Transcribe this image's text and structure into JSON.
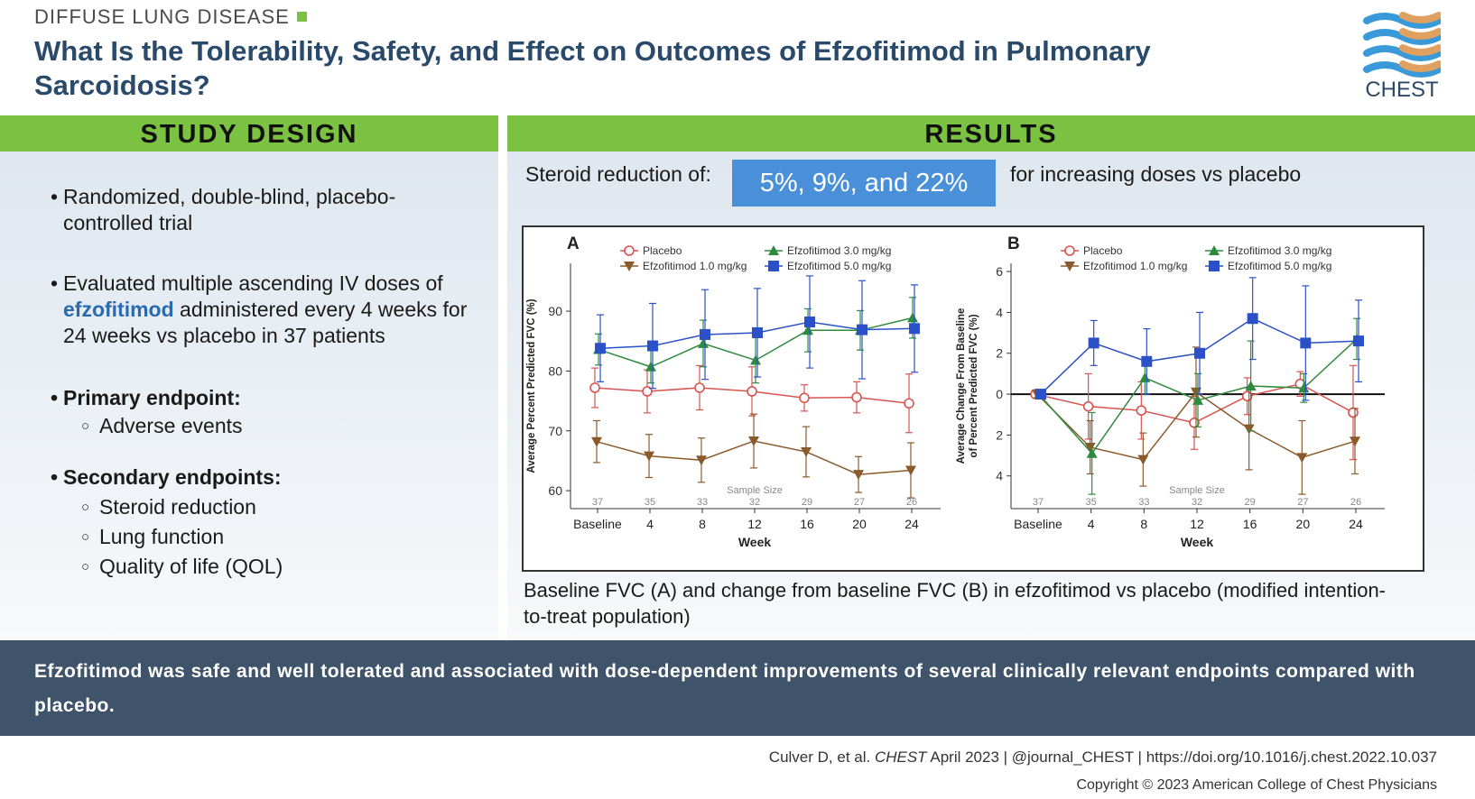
{
  "header": {
    "topic": "DIFFUSE LUNG DISEASE",
    "title": "What Is the Tolerability, Safety, and Effect on Outcomes of Efzofitimod in Pulmonary Sarcoidosis?",
    "logo_text": "CHEST"
  },
  "study_design": {
    "heading": "STUDY DESIGN",
    "bullet1": "Randomized, double-blind, placebo-controlled trial",
    "bullet2_pre": "Evaluated multiple ascending IV doses of ",
    "bullet2_drug": "efzofitimod",
    "bullet2_post": " administered every 4 weeks for 24 weeks vs placebo in 37 patients",
    "primary_label": "Primary endpoint:",
    "primary_items": [
      "Adverse events"
    ],
    "secondary_label": "Secondary endpoints:",
    "secondary_items": [
      "Steroid reduction",
      "Lung function",
      "Quality of life (QOL)"
    ]
  },
  "results": {
    "heading": "RESULTS",
    "steroid_pre": "Steroid reduction of:",
    "steroid_values": "5%, 9%, and 22%",
    "steroid_post": "for increasing doses vs placebo",
    "caption": "Baseline FVC (A) and change from baseline FVC (B) in efzofitimod vs placebo (modified intention-to-treat population)"
  },
  "chart_data": [
    {
      "type": "line",
      "panel_label": "A",
      "x": [
        "Baseline",
        "4",
        "8",
        "12",
        "16",
        "20",
        "24"
      ],
      "xlabel": "Week",
      "ylabel": "Average Percent Predicted FVC (%)",
      "ylim": [
        57,
        98
      ],
      "yticks": [
        60,
        70,
        80,
        90
      ],
      "sample_size_label": "Sample Size",
      "sample_sizes": [
        37,
        35,
        33,
        32,
        29,
        27,
        26
      ],
      "legend_position": "top",
      "series": [
        {
          "name": "Placebo",
          "color": "#d9534f",
          "marker": "circle-open",
          "values": [
            77.2,
            76.6,
            77.2,
            76.6,
            75.5,
            75.6,
            74.6
          ],
          "err": [
            3.3,
            3.6,
            3.7,
            4.1,
            2.2,
            2.6,
            4.9
          ]
        },
        {
          "name": "Efzofitimod 1.0 mg/kg",
          "color": "#8b5a2b",
          "marker": "triangle-down",
          "values": [
            68.2,
            65.8,
            65.1,
            68.3,
            66.5,
            62.7,
            63.4
          ],
          "err": [
            3.5,
            3.6,
            3.7,
            4.5,
            4.2,
            3.0,
            4.6
          ]
        },
        {
          "name": "Efzofitimod 3.0 mg/kg",
          "color": "#2e8b3d",
          "marker": "triangle-up",
          "values": [
            83.6,
            80.7,
            84.6,
            81.8,
            86.8,
            86.8,
            88.9
          ],
          "err": [
            2.6,
            2.7,
            3.9,
            3.8,
            3.6,
            3.3,
            3.4
          ]
        },
        {
          "name": "Efzofitimod 5.0 mg/kg",
          "color": "#2b50c8",
          "marker": "square",
          "values": [
            83.8,
            84.2,
            86.1,
            86.4,
            88.2,
            86.9,
            87.1
          ],
          "err": [
            5.6,
            7.1,
            7.5,
            7.4,
            7.7,
            8.2,
            7.3
          ]
        }
      ]
    },
    {
      "type": "line",
      "panel_label": "B",
      "x": [
        "Baseline",
        "4",
        "8",
        "12",
        "16",
        "20",
        "24"
      ],
      "xlabel": "Week",
      "ylabel": "Average Change From Baseline of Percent Predicted FVC (%)",
      "ylim": [
        -5.6,
        6.4
      ],
      "yticks": [
        -4,
        -2,
        0,
        2,
        4,
        6
      ],
      "ytick_labels": [
        "4",
        "2",
        "0",
        "2",
        "4",
        "6"
      ],
      "sample_size_label": "Sample Size",
      "sample_sizes": [
        37,
        35,
        33,
        32,
        29,
        27,
        26
      ],
      "legend_position": "top",
      "series": [
        {
          "name": "Placebo",
          "color": "#d9534f",
          "marker": "circle-open",
          "values": [
            0,
            -0.6,
            -0.8,
            -1.4,
            -0.1,
            0.5,
            -0.9
          ],
          "err": [
            0,
            1.6,
            1.4,
            1.3,
            0.9,
            0.6,
            2.3
          ]
        },
        {
          "name": "Efzofitimod 1.0 mg/kg",
          "color": "#8b5a2b",
          "marker": "triangle-down",
          "values": [
            0,
            -2.6,
            -3.2,
            0.1,
            -1.7,
            -3.1,
            -2.3
          ],
          "err": [
            0,
            1.3,
            1.3,
            2.2,
            2.0,
            1.8,
            1.6
          ]
        },
        {
          "name": "Efzofitimod 3.0 mg/kg",
          "color": "#2e8b3d",
          "marker": "triangle-up",
          "values": [
            0,
            -2.9,
            0.8,
            -0.3,
            0.4,
            0.3,
            2.7
          ],
          "err": [
            0,
            2.0,
            0.8,
            1.3,
            2.2,
            0.7,
            1.0
          ]
        },
        {
          "name": "Efzofitimod 5.0 mg/kg",
          "color": "#2b50c8",
          "marker": "square",
          "values": [
            0,
            2.5,
            1.6,
            2.0,
            3.7,
            2.5,
            2.6
          ],
          "err": [
            0,
            1.1,
            1.6,
            2.0,
            2.0,
            2.8,
            2.0
          ]
        }
      ]
    }
  ],
  "conclusion": "Efzofitimod was safe and well tolerated and associated with dose-dependent improvements of several clinically relevant endpoints compared with placebo.",
  "footer": {
    "citation_pre": "Culver D, et al. ",
    "citation_journal": "CHEST",
    "citation_post": " April 2023  |  @journal_CHEST  |  https://doi.org/10.1016/j.chest.2022.10.037",
    "copyright": "Copyright © 2023 American College of Chest Physicians"
  }
}
